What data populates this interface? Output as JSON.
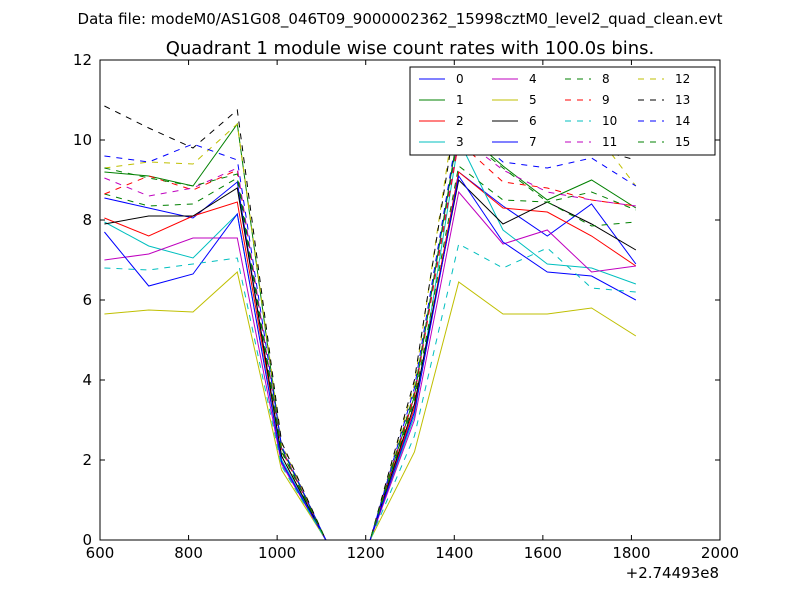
{
  "header": "Data file: modeM0/AS1G08_046T09_9000002362_15998cztM0_level2_quad_clean.evt",
  "chart_data": {
    "type": "line",
    "title": "Quadrant 1 module wise count rates with 100.0s bins.",
    "xlabel": "",
    "ylabel": "",
    "xlim": [
      600,
      2000
    ],
    "ylim": [
      0,
      12
    ],
    "x_offset_label": "+2.74493e8",
    "xticks": [
      600,
      800,
      1000,
      1200,
      1400,
      1600,
      1800,
      2000
    ],
    "yticks": [
      0,
      2,
      4,
      6,
      8,
      10,
      12
    ],
    "grid": false,
    "legend_position": "top-right",
    "x": [
      610,
      710,
      810,
      910,
      1010,
      1110,
      1210,
      1310,
      1410,
      1510,
      1610,
      1710,
      1810
    ],
    "series": [
      {
        "name": "0",
        "color": "#0000ff",
        "dash": "solid",
        "values": [
          8.55,
          8.3,
          8.05,
          8.95,
          2.0,
          0,
          0,
          3.2,
          9.2,
          8.35,
          7.6,
          8.4,
          6.9
        ]
      },
      {
        "name": "1",
        "color": "#008000",
        "dash": "solid",
        "values": [
          9.2,
          9.1,
          8.85,
          10.4,
          2.3,
          0,
          0,
          3.6,
          10.3,
          9.35,
          8.5,
          9.0,
          8.3
        ]
      },
      {
        "name": "2",
        "color": "#ff0000",
        "dash": "solid",
        "values": [
          8.05,
          7.6,
          8.1,
          8.45,
          2.1,
          0,
          0,
          3.3,
          9.2,
          8.3,
          8.2,
          7.6,
          6.85
        ]
      },
      {
        "name": "3",
        "color": "#00bfbf",
        "dash": "solid",
        "values": [
          7.95,
          7.35,
          7.05,
          8.15,
          2.0,
          0,
          0,
          3.1,
          10.0,
          7.75,
          6.9,
          6.8,
          6.4
        ]
      },
      {
        "name": "4",
        "color": "#bf00bf",
        "dash": "solid",
        "values": [
          7.0,
          7.15,
          7.55,
          7.55,
          1.9,
          0,
          0,
          3.0,
          8.7,
          7.4,
          7.75,
          6.7,
          6.85
        ]
      },
      {
        "name": "5",
        "color": "#bfbf00",
        "dash": "solid",
        "values": [
          5.65,
          5.75,
          5.7,
          6.7,
          1.75,
          0,
          0,
          2.2,
          6.45,
          5.65,
          5.65,
          5.8,
          5.1
        ]
      },
      {
        "name": "6",
        "color": "#000000",
        "dash": "solid",
        "values": [
          7.9,
          8.1,
          8.1,
          8.8,
          2.1,
          0,
          0,
          3.4,
          9.0,
          7.9,
          8.45,
          7.9,
          7.25
        ]
      },
      {
        "name": "7",
        "color": "#0000ff",
        "dash": "solid",
        "values": [
          7.7,
          6.35,
          6.65,
          8.15,
          1.95,
          0,
          0,
          3.2,
          9.1,
          7.45,
          6.7,
          6.6,
          6.0
        ]
      },
      {
        "name": "8",
        "color": "#008000",
        "dash": "dashed",
        "values": [
          8.65,
          8.35,
          8.4,
          9.05,
          2.2,
          0,
          0,
          3.5,
          9.35,
          8.5,
          8.45,
          8.7,
          8.25
        ]
      },
      {
        "name": "9",
        "color": "#ff0000",
        "dash": "dashed",
        "values": [
          8.65,
          9.1,
          8.75,
          9.25,
          2.25,
          0,
          0,
          3.6,
          9.95,
          8.95,
          8.8,
          8.5,
          8.35
        ]
      },
      {
        "name": "10",
        "color": "#00bfbf",
        "dash": "dashed",
        "values": [
          6.8,
          6.75,
          6.9,
          7.05,
          1.85,
          0,
          0,
          2.6,
          7.4,
          6.8,
          7.3,
          6.3,
          6.2
        ]
      },
      {
        "name": "11",
        "color": "#bf00bf",
        "dash": "dashed",
        "values": [
          9.05,
          8.6,
          8.8,
          9.3,
          2.3,
          0,
          0,
          3.7,
          10.1,
          9.25,
          8.7,
          8.5,
          8.35
        ]
      },
      {
        "name": "12",
        "color": "#bfbf00",
        "dash": "dashed",
        "values": [
          9.3,
          9.45,
          9.4,
          10.4,
          2.4,
          0,
          0,
          3.9,
          11.3,
          9.75,
          9.9,
          10.3,
          8.85
        ]
      },
      {
        "name": "13",
        "color": "#000000",
        "dash": "dashed",
        "values": [
          10.85,
          10.3,
          9.8,
          10.75,
          2.45,
          0,
          0,
          4.0,
          11.05,
          10.45,
          10.25,
          9.8,
          9.5
        ]
      },
      {
        "name": "14",
        "color": "#0000ff",
        "dash": "dashed",
        "values": [
          9.6,
          9.45,
          9.9,
          9.5,
          2.35,
          0,
          0,
          3.8,
          10.4,
          9.45,
          9.3,
          9.55,
          8.85
        ]
      },
      {
        "name": "15",
        "color": "#008000",
        "dash": "dashed",
        "values": [
          9.3,
          9.05,
          8.85,
          9.15,
          2.25,
          0,
          0,
          3.7,
          10.2,
          9.3,
          8.45,
          7.85,
          7.95
        ]
      }
    ]
  }
}
